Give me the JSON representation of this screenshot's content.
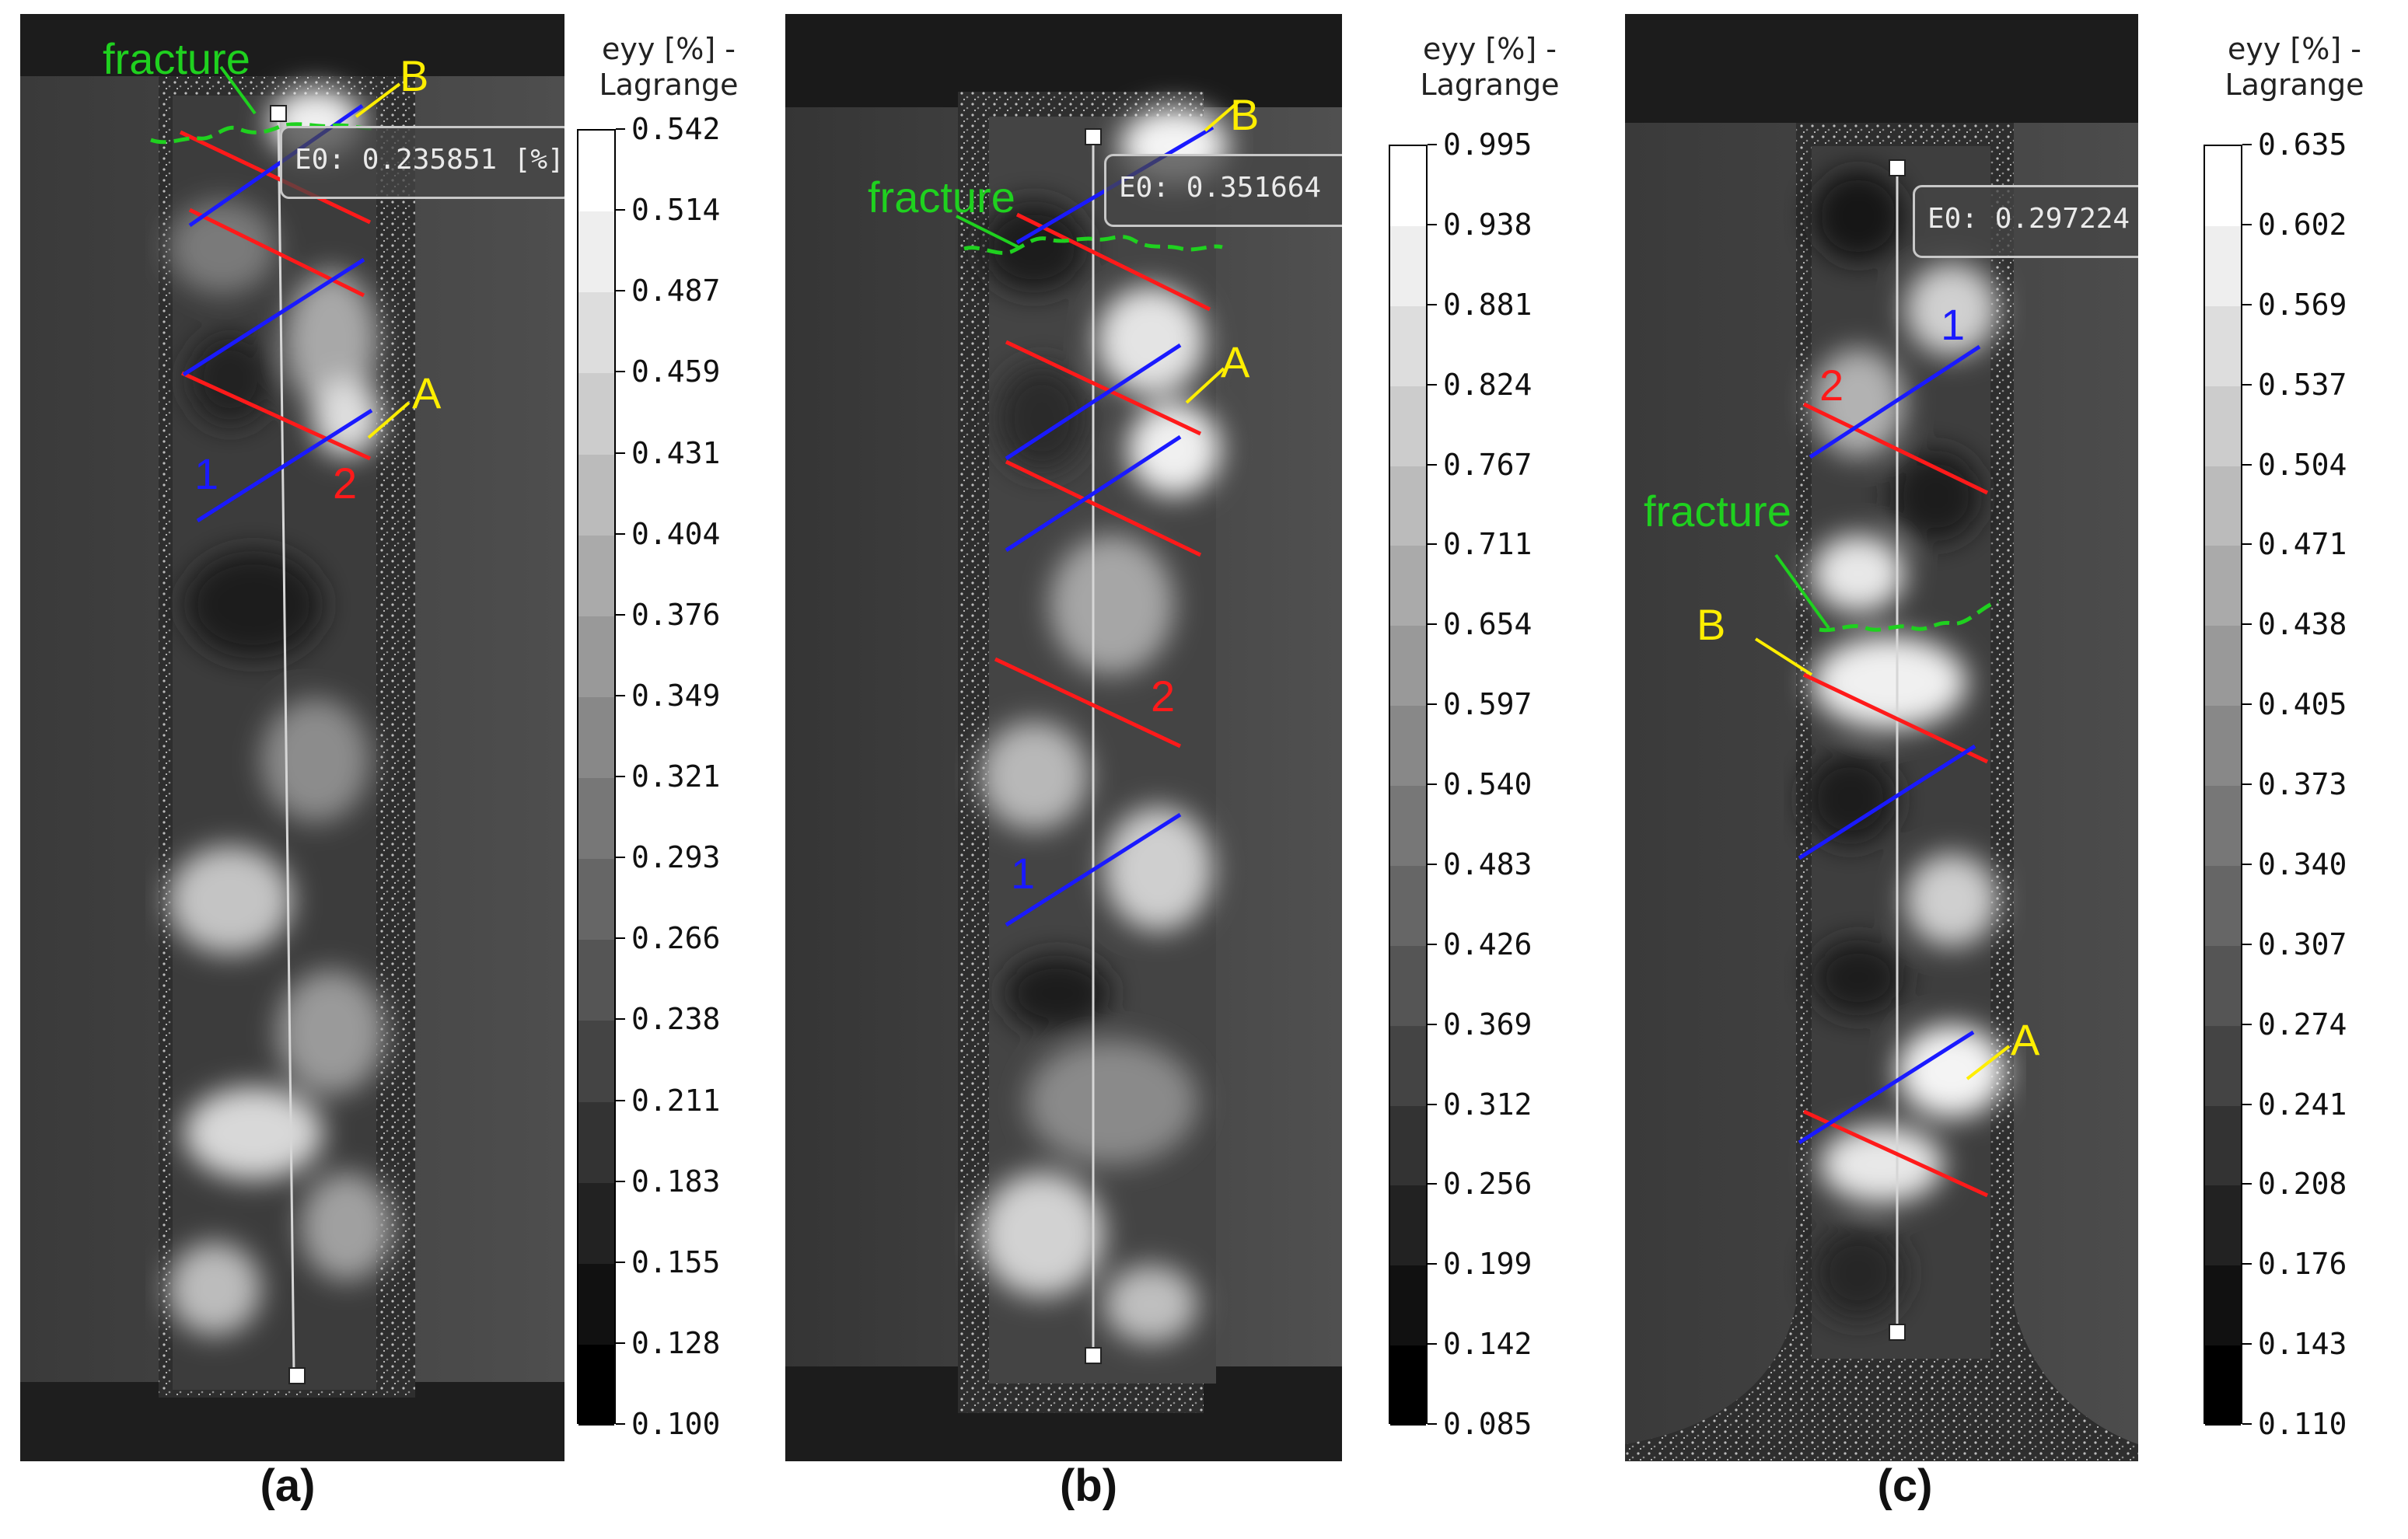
{
  "panels": [
    {
      "caption": "(a)",
      "tooltip": "E0: 0.235851 [%]",
      "labels": {
        "fracture": "fracture",
        "a": "A",
        "b": "B",
        "one": "1",
        "two": "2"
      },
      "colorbar": {
        "title_line1": "eyy [%] -",
        "title_line2": "Lagrange",
        "ticks": [
          "0.542",
          "0.514",
          "0.487",
          "0.459",
          "0.431",
          "0.404",
          "0.376",
          "0.349",
          "0.321",
          "0.293",
          "0.266",
          "0.238",
          "0.211",
          "0.183",
          "0.155",
          "0.128",
          "0.100"
        ]
      }
    },
    {
      "caption": "(b)",
      "tooltip": "E0: 0.351664 [",
      "labels": {
        "fracture": "fracture",
        "a": "A",
        "b": "B",
        "one": "1",
        "two": "2"
      },
      "colorbar": {
        "title_line1": "eyy [%] -",
        "title_line2": "Lagrange",
        "ticks": [
          "0.995",
          "0.938",
          "0.881",
          "0.824",
          "0.767",
          "0.711",
          "0.654",
          "0.597",
          "0.540",
          "0.483",
          "0.426",
          "0.369",
          "0.312",
          "0.256",
          "0.199",
          "0.142",
          "0.085"
        ]
      }
    },
    {
      "caption": "(c)",
      "tooltip": "E0: 0.297224",
      "labels": {
        "fracture": "fracture",
        "a": "A",
        "b": "B",
        "one": "1",
        "two": "2"
      },
      "colorbar": {
        "title_line1": "eyy [%] -",
        "title_line2": "Lagrange",
        "ticks": [
          "0.635",
          "0.602",
          "0.569",
          "0.537",
          "0.504",
          "0.471",
          "0.438",
          "0.405",
          "0.373",
          "0.340",
          "0.307",
          "0.274",
          "0.241",
          "0.208",
          "0.176",
          "0.143",
          "0.110"
        ]
      }
    }
  ],
  "colors": {
    "fracture": "#1fd11f",
    "marker": "#ffee00",
    "line1": "#1a1aff",
    "line2": "#ff1a1a"
  }
}
